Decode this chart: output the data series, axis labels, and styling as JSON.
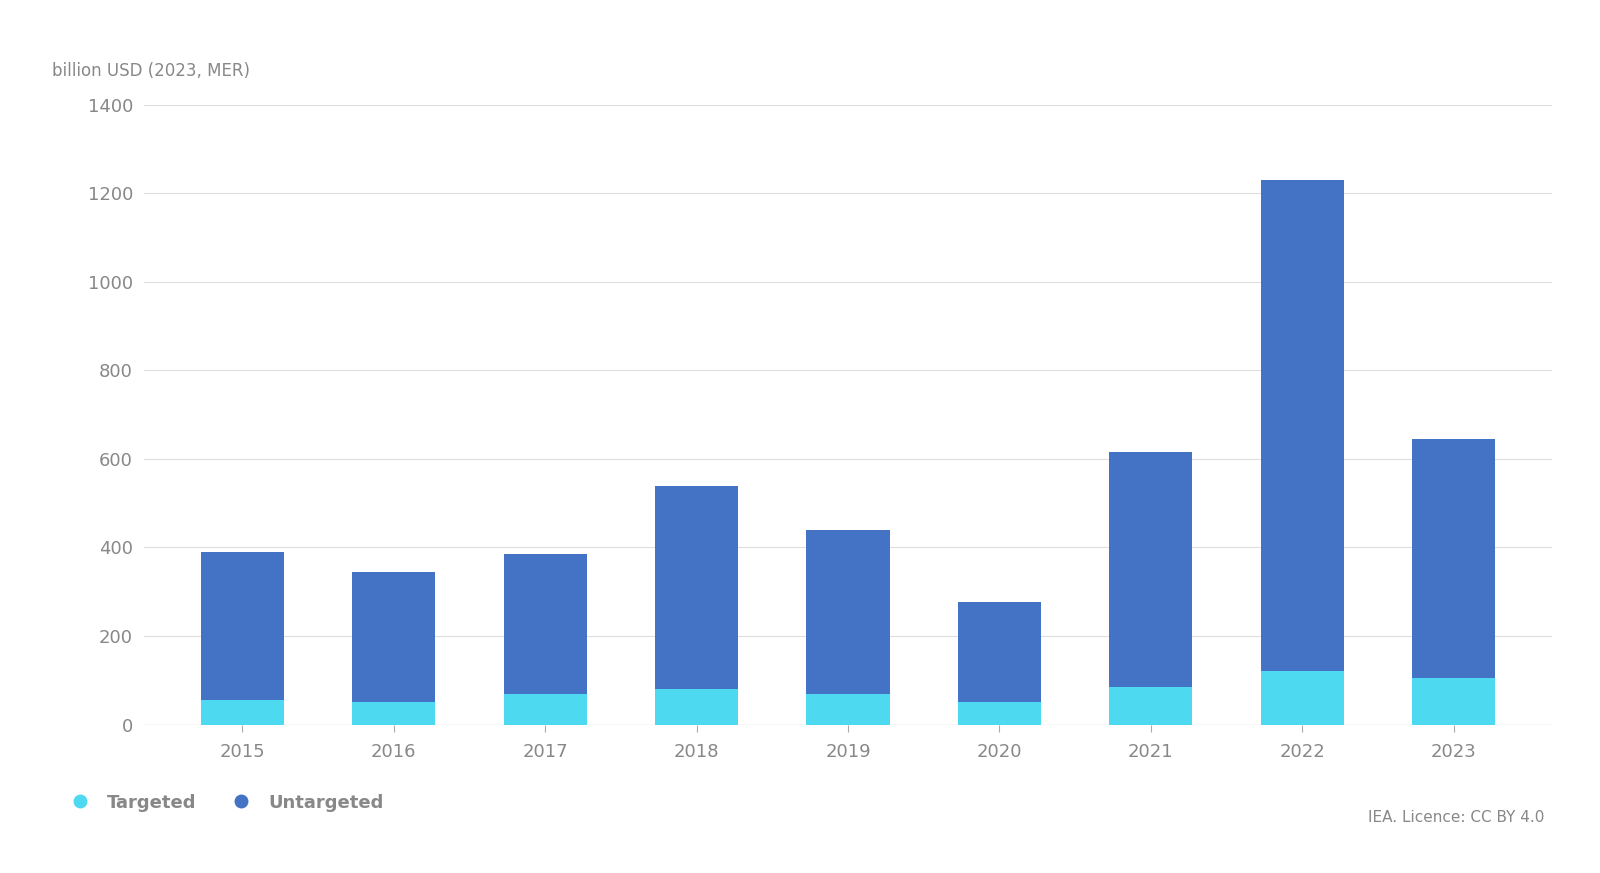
{
  "years": [
    "2015",
    "2016",
    "2017",
    "2018",
    "2019",
    "2020",
    "2021",
    "2022",
    "2023"
  ],
  "targeted": [
    55,
    50,
    70,
    80,
    70,
    50,
    85,
    120,
    105
  ],
  "untargeted": [
    335,
    295,
    315,
    460,
    370,
    228,
    530,
    1110,
    540
  ],
  "color_targeted": "#4dd9f0",
  "color_untargeted": "#4472c4",
  "ylabel": "billion USD (2023, MER)",
  "ylim": [
    0,
    1400
  ],
  "yticks": [
    0,
    200,
    400,
    600,
    800,
    1000,
    1200,
    1400
  ],
  "legend_targeted": "Targeted",
  "legend_untargeted": "Untargeted",
  "source_text": "IEA. Licence: CC BY 4.0",
  "background_color": "#ffffff",
  "grid_color": "#dddddd",
  "bar_width": 0.55,
  "text_color": "#888888",
  "tick_color": "#aaaaaa"
}
